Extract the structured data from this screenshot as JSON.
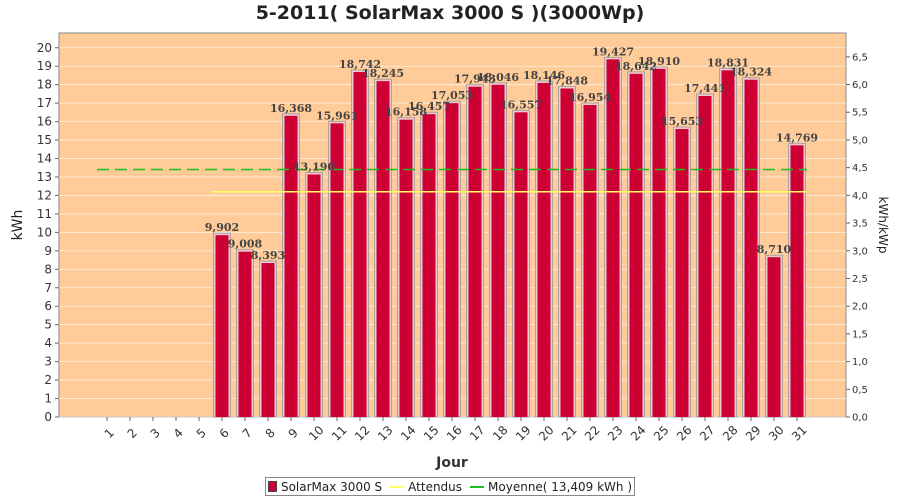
{
  "chart_data": {
    "type": "bar",
    "title": "5-2011( SolarMax 3000 S )(3000Wp)",
    "xlabel": "Jour",
    "ylabel": "kWh",
    "y2label": "kWh/kWp",
    "ylim": [
      0,
      20.8
    ],
    "y2lim": [
      0,
      6.93
    ],
    "yticks": [
      0,
      1,
      2,
      3,
      4,
      5,
      6,
      7,
      8,
      9,
      10,
      11,
      12,
      13,
      14,
      15,
      16,
      17,
      18,
      19,
      20
    ],
    "y2ticks": [
      "0,0",
      "0,5",
      "1,0",
      "1,5",
      "2,0",
      "2,5",
      "3,0",
      "3,5",
      "4,0",
      "4,5",
      "5,0",
      "5,5",
      "6,0",
      "6,5"
    ],
    "y2tick_values": [
      0,
      0.5,
      1,
      1.5,
      2,
      2.5,
      3,
      3.5,
      4,
      4.5,
      5,
      5.5,
      6,
      6.5
    ],
    "categories": [
      "1",
      "2",
      "3",
      "4",
      "5",
      "6",
      "7",
      "8",
      "9",
      "10",
      "11",
      "12",
      "13",
      "14",
      "15",
      "16",
      "17",
      "18",
      "19",
      "20",
      "21",
      "22",
      "23",
      "24",
      "25",
      "26",
      "27",
      "28",
      "29",
      "30",
      "31"
    ],
    "series": [
      {
        "name": "SolarMax 3000 S",
        "values": [
          0,
          0,
          0,
          0,
          0,
          9.902,
          9.008,
          8.393,
          16.368,
          13.19,
          15.961,
          18.742,
          18.245,
          16.158,
          16.457,
          17.053,
          17.943,
          18.046,
          16.557,
          18.146,
          17.848,
          16.954,
          19.427,
          18.642,
          18.91,
          15.653,
          17.441,
          18.831,
          18.324,
          8.71,
          14.769
        ],
        "labels": [
          "",
          "",
          "",
          "",
          "",
          "9,902",
          "9,008",
          "8,393",
          "16,368",
          "13,190",
          "15,961",
          "18,742",
          "18,245",
          "16,158",
          "16,457",
          "17,053",
          "17,943",
          "18,046",
          "16,557",
          "18,146",
          "17,848",
          "16,954",
          "19,427",
          "18,642",
          "18,910",
          "15,653",
          "17,441",
          "18,831",
          "18,324",
          "8,710",
          "14,769"
        ],
        "color": "#cc0033"
      },
      {
        "name": "Attendus",
        "type": "line",
        "value": 12.2,
        "start_day": "6",
        "color": "#ffff66"
      },
      {
        "name": "Moyenne( 13,409 kWh )",
        "type": "line",
        "value": 13.409,
        "color": "#22bb22"
      }
    ],
    "plot_background": "#ffcc99",
    "grid": true,
    "legend_position": "bottom"
  }
}
